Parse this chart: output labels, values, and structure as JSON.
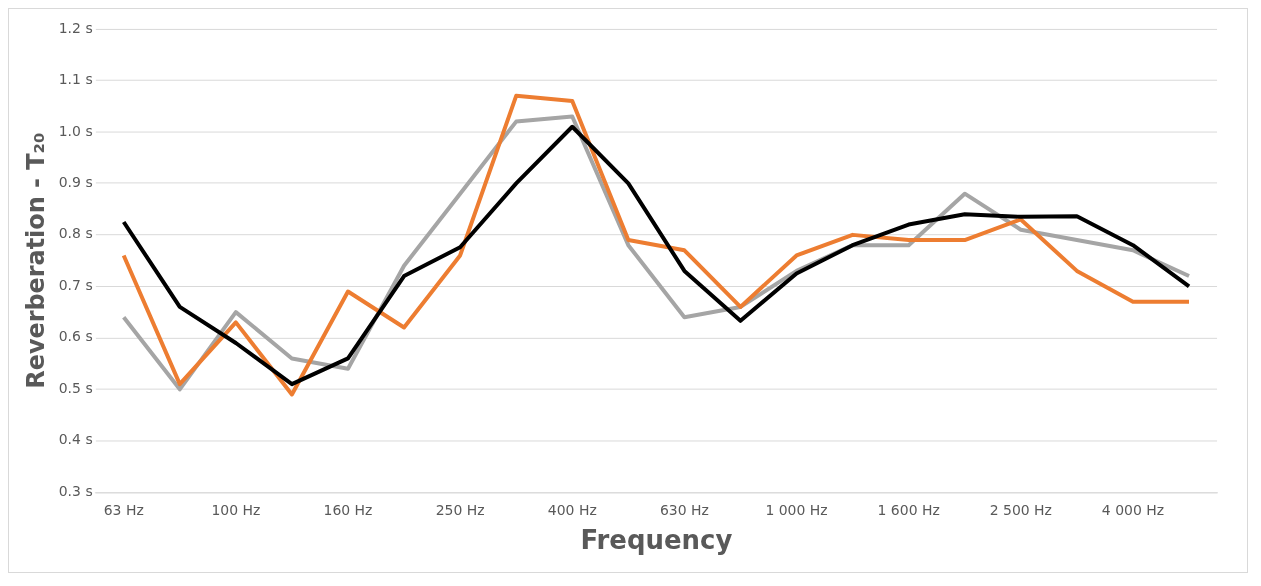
{
  "chart_data": {
    "type": "line",
    "xlabel": "Frequency",
    "ylabel": "Reverberation - T₂₀",
    "categories": [
      "63 Hz",
      null,
      "100 Hz",
      null,
      "160 Hz",
      null,
      "250 Hz",
      null,
      "400 Hz",
      null,
      "630 Hz",
      null,
      "1 000 Hz",
      null,
      "1 600 Hz",
      null,
      "2 500 Hz",
      null,
      "4 000 Hz",
      null
    ],
    "series": [
      {
        "color": "#000000",
        "values": [
          0.825,
          0.66,
          0.59,
          0.51,
          0.56,
          0.72,
          0.776,
          0.9,
          1.01,
          0.9,
          0.73,
          0.633,
          0.725,
          0.78,
          0.82,
          0.84,
          0.835,
          0.836,
          0.78,
          0.7
        ]
      },
      {
        "color": "#ed7d31",
        "values": [
          0.76,
          0.51,
          0.63,
          0.49,
          0.69,
          0.62,
          0.76,
          1.07,
          1.06,
          0.79,
          0.77,
          0.66,
          0.76,
          0.8,
          0.79,
          0.79,
          0.83,
          0.73,
          0.67,
          0.67
        ]
      },
      {
        "color": "#a5a5a5",
        "values": [
          0.64,
          0.5,
          0.65,
          0.56,
          0.54,
          0.74,
          0.88,
          1.02,
          1.03,
          0.78,
          0.64,
          0.66,
          0.73,
          0.78,
          0.78,
          0.88,
          0.81,
          0.79,
          0.77,
          0.72
        ]
      }
    ],
    "ylim": [
      0.3,
      1.2
    ],
    "yticks": [
      {
        "value": 0.3,
        "label": "0.3 s"
      },
      {
        "value": 0.4,
        "label": "0.4 s"
      },
      {
        "value": 0.5,
        "label": "0.5 s"
      },
      {
        "value": 0.6,
        "label": "0.6 s"
      },
      {
        "value": 0.7,
        "label": "0.7 s"
      },
      {
        "value": 0.8,
        "label": "0.8 s"
      },
      {
        "value": 0.9,
        "label": "0.9 s"
      },
      {
        "value": 1.0,
        "label": "1.0 s"
      },
      {
        "value": 1.1,
        "label": "1.1 s"
      },
      {
        "value": 1.2,
        "label": "1.2 s"
      }
    ],
    "grid": "y",
    "marker": "none",
    "line_style": "solid"
  }
}
